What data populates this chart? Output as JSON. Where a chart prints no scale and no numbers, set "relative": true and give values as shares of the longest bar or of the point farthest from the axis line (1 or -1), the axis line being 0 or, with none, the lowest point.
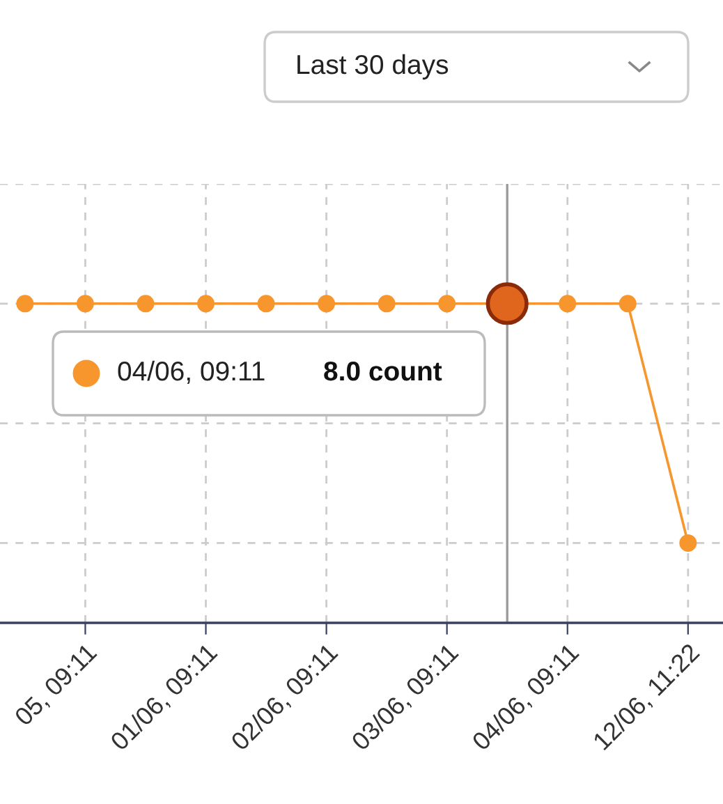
{
  "chart_data": {
    "type": "line",
    "categories": [
      null,
      "05, 09:11",
      null,
      "01/06, 09:11",
      null,
      "02/06, 09:11",
      null,
      "03/06, 09:11",
      null,
      "04/06, 09:11",
      null,
      "12/06, 11:22"
    ],
    "series": [
      {
        "color": "#f7962d",
        "values": [
          1,
          1,
          1,
          1,
          1,
          1,
          1,
          1,
          1,
          1,
          1,
          0.25
        ]
      }
    ],
    "relative": true,
    "tick_labels": "x",
    "grid": true,
    "marker": "circle",
    "line_style": "solid",
    "annotations": [
      "Last 30 days",
      "04/06, 09:11",
      "8.0 count"
    ]
  }
}
